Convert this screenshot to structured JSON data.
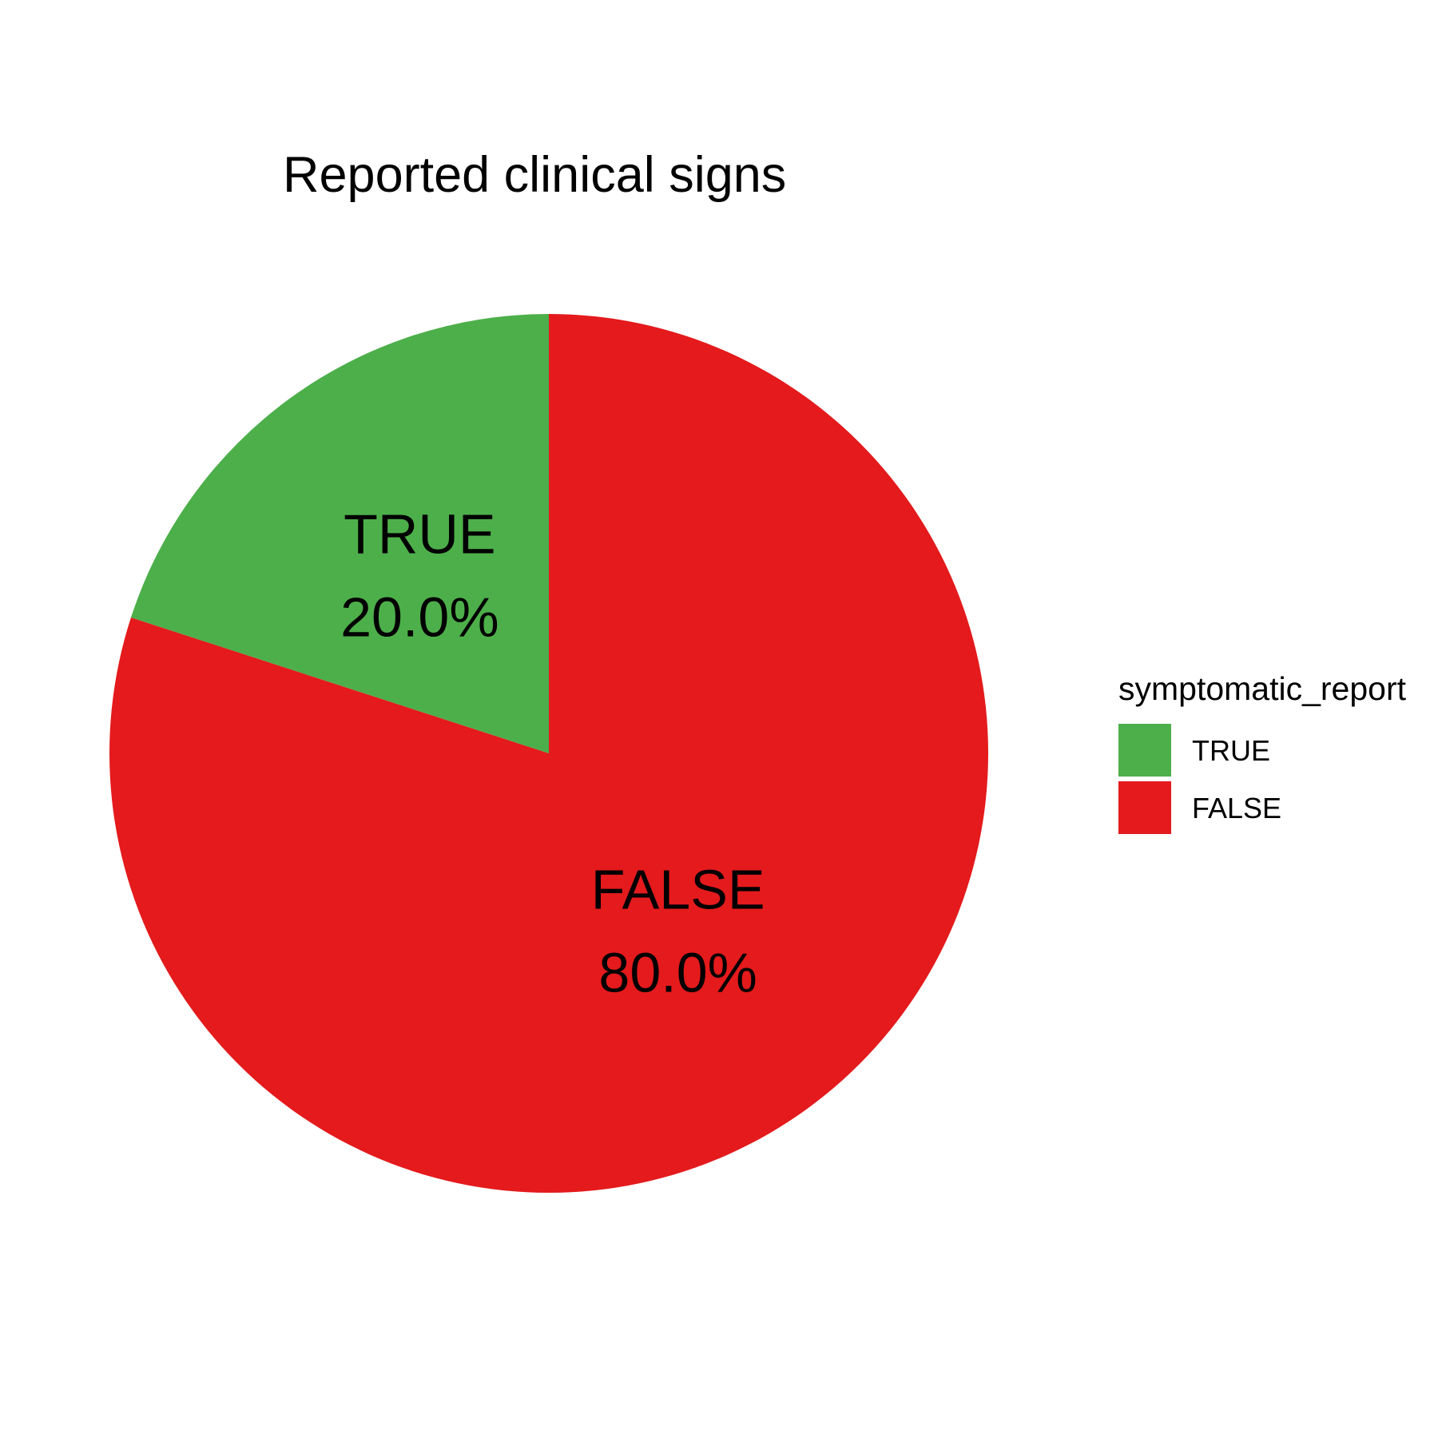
{
  "chart_data": {
    "type": "pie",
    "title": "Reported clinical signs",
    "legend": {
      "title": "symptomatic_report",
      "position": "right"
    },
    "slices": [
      {
        "category": "TRUE",
        "value": 20.0,
        "label": "20.0%",
        "color": "#4daf4a"
      },
      {
        "category": "FALSE",
        "value": 80.0,
        "label": "80.0%",
        "color": "#e41a1c"
      }
    ],
    "start": "12 o'clock",
    "direction": "counter-clockwise"
  }
}
